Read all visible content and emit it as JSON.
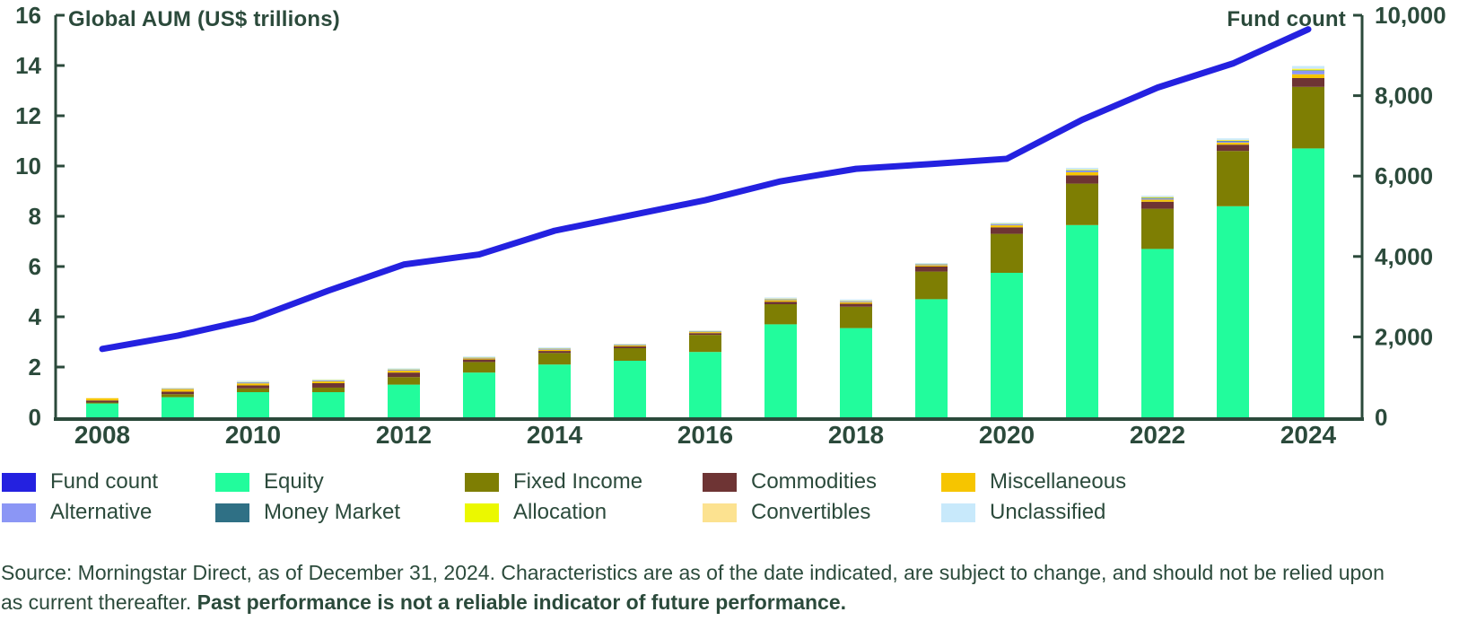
{
  "colors": {
    "text": "#2B4A3B",
    "axis": "#2B4A3B",
    "background": "#FFFFFF"
  },
  "chart_data": {
    "type": "bar",
    "subtype": "stacked-bars-with-line",
    "x": [
      2008,
      2009,
      2010,
      2011,
      2012,
      2013,
      2014,
      2015,
      2016,
      2017,
      2018,
      2019,
      2020,
      2021,
      2022,
      2023,
      2024
    ],
    "x_tick_labels": [
      "2008",
      "2010",
      "2012",
      "2014",
      "2016",
      "2018",
      "2020",
      "2022",
      "2024"
    ],
    "left_axis": {
      "title": "Global AUM (US$ trillions)",
      "min": 0,
      "max": 16,
      "tick_values": [
        0,
        2,
        4,
        6,
        8,
        10,
        12,
        14,
        16
      ],
      "tick_labels": [
        "0",
        "2",
        "4",
        "6",
        "8",
        "10",
        "12",
        "14",
        "16"
      ]
    },
    "right_axis": {
      "title": "Fund count",
      "min": 0,
      "max": 10000,
      "tick_values": [
        0,
        2000,
        4000,
        6000,
        8000,
        10000
      ],
      "tick_labels": [
        "0",
        "2,000",
        "4,000",
        "6,000",
        "8,000",
        "10,000"
      ]
    },
    "bar_series": [
      {
        "name": "Equity",
        "color": "#22FC9C",
        "values": [
          0.55,
          0.8,
          1.0,
          1.0,
          1.3,
          1.78,
          2.1,
          2.25,
          2.6,
          3.7,
          3.55,
          4.7,
          5.75,
          7.65,
          6.7,
          8.4,
          10.7
        ]
      },
      {
        "name": "Fixed Income",
        "color": "#7E7E03",
        "values": [
          0.04,
          0.12,
          0.15,
          0.18,
          0.3,
          0.42,
          0.46,
          0.5,
          0.68,
          0.8,
          0.85,
          1.1,
          1.55,
          1.65,
          1.6,
          2.2,
          2.45
        ]
      },
      {
        "name": "Commodities",
        "color": "#6E3434",
        "values": [
          0.08,
          0.1,
          0.12,
          0.18,
          0.18,
          0.1,
          0.08,
          0.07,
          0.07,
          0.1,
          0.12,
          0.2,
          0.26,
          0.33,
          0.28,
          0.25,
          0.35
        ]
      },
      {
        "name": "Miscellaneous",
        "color": "#F6C500",
        "values": [
          0.09,
          0.1,
          0.08,
          0.07,
          0.08,
          0.04,
          0.05,
          0.04,
          0.04,
          0.06,
          0.06,
          0.05,
          0.08,
          0.12,
          0.08,
          0.08,
          0.15
        ]
      },
      {
        "name": "Alternative",
        "color": "#8B96F5",
        "values": [
          0.0,
          0.02,
          0.03,
          0.03,
          0.03,
          0.02,
          0.03,
          0.02,
          0.02,
          0.03,
          0.03,
          0.03,
          0.04,
          0.06,
          0.05,
          0.05,
          0.14
        ]
      },
      {
        "name": "Money Market",
        "color": "#2F7085",
        "values": [
          0.0,
          0.0,
          0.01,
          0.01,
          0.01,
          0.01,
          0.01,
          0.01,
          0.01,
          0.01,
          0.01,
          0.01,
          0.01,
          0.02,
          0.02,
          0.02,
          0.02
        ]
      },
      {
        "name": "Allocation",
        "color": "#EBF800",
        "values": [
          0.0,
          0.01,
          0.01,
          0.01,
          0.01,
          0.01,
          0.01,
          0.01,
          0.01,
          0.01,
          0.01,
          0.01,
          0.01,
          0.02,
          0.02,
          0.02,
          0.04
        ]
      },
      {
        "name": "Convertibles",
        "color": "#FCE290",
        "values": [
          0.0,
          0.01,
          0.01,
          0.01,
          0.01,
          0.01,
          0.01,
          0.01,
          0.01,
          0.02,
          0.02,
          0.01,
          0.01,
          0.02,
          0.02,
          0.02,
          0.03
        ]
      },
      {
        "name": "Unclassified",
        "color": "#C8E9FB",
        "values": [
          0.0,
          0.02,
          0.04,
          0.02,
          0.03,
          0.03,
          0.03,
          0.02,
          0.02,
          0.04,
          0.04,
          0.03,
          0.04,
          0.06,
          0.05,
          0.06,
          0.1
        ]
      }
    ],
    "line_series": {
      "name": "Fund count",
      "color": "#2421E0",
      "values": [
        1700,
        2030,
        2450,
        3150,
        3800,
        4050,
        4640,
        5020,
        5400,
        5870,
        6180,
        6300,
        6430,
        7400,
        8200,
        8800,
        9650
      ]
    },
    "legend_position": "bottom",
    "grid": false
  },
  "legend": {
    "items": [
      {
        "label": "Fund count",
        "color": "#2421E0",
        "row": 0,
        "col": 0
      },
      {
        "label": "Equity",
        "color": "#22FC9C",
        "row": 0,
        "col": 1
      },
      {
        "label": "Fixed Income",
        "color": "#7E7E03",
        "row": 0,
        "col": 2
      },
      {
        "label": "Commodities",
        "color": "#6E3434",
        "row": 0,
        "col": 3
      },
      {
        "label": "Miscellaneous",
        "color": "#F6C500",
        "row": 0,
        "col": 4
      },
      {
        "label": "Alternative",
        "color": "#8B96F5",
        "row": 1,
        "col": 0
      },
      {
        "label": "Money Market",
        "color": "#2F7085",
        "row": 1,
        "col": 1
      },
      {
        "label": "Allocation",
        "color": "#EBF800",
        "row": 1,
        "col": 2
      },
      {
        "label": "Convertibles",
        "color": "#FCE290",
        "row": 1,
        "col": 3
      },
      {
        "label": "Unclassified",
        "color": "#C8E9FB",
        "row": 1,
        "col": 4
      }
    ]
  },
  "source": {
    "line1": "Source: Morningstar Direct, as of December 31, 2024. Characteristics are as of the date indicated, are subject to change, and should not be relied upon",
    "line2_prefix": "as current thereafter. ",
    "line2_bold": "Past performance is not a reliable indicator of future performance."
  }
}
